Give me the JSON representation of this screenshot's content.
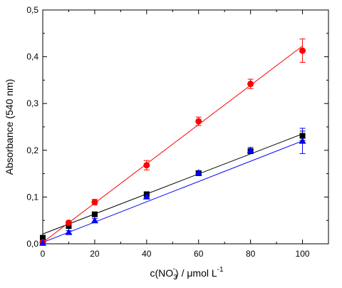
{
  "chart_data": {
    "type": "scatter",
    "xlabel_parts": {
      "before": "c(NO",
      "sub": "3",
      "sup": "-",
      "after": ") / μmol L",
      "unit_sup": "-1"
    },
    "ylabel": "Absorbance (540 nm)",
    "xlim": [
      0,
      110
    ],
    "ylim": [
      0,
      0.5
    ],
    "x_ticks": [
      0,
      20,
      40,
      60,
      80,
      100
    ],
    "x_tick_labels": [
      "0",
      "20",
      "40",
      "60",
      "80",
      "100"
    ],
    "y_ticks": [
      0,
      0.1,
      0.2,
      0.3,
      0.4,
      0.5
    ],
    "y_tick_labels": [
      "0,0",
      "0,1",
      "0,2",
      "0,3",
      "0,4",
      "0,5"
    ],
    "grid": false,
    "series": [
      {
        "marker": "square",
        "color": "#000000",
        "x": [
          0,
          10,
          20,
          40,
          60,
          80,
          100
        ],
        "y": [
          0.013,
          0.038,
          0.063,
          0.106,
          0.151,
          0.198,
          0.231
        ],
        "err": [
          0.0,
          0.004,
          0.004,
          0.004,
          0.004,
          0.004,
          0.01
        ],
        "fit": {
          "x": [
            0,
            100
          ],
          "y": [
            0.021,
            0.235
          ]
        }
      },
      {
        "marker": "circle",
        "color": "#ff0000",
        "x": [
          0,
          10,
          20,
          40,
          60,
          80,
          100
        ],
        "y": [
          0.003,
          0.045,
          0.089,
          0.168,
          0.262,
          0.342,
          0.413
        ],
        "err": [
          0.0,
          0.004,
          0.006,
          0.01,
          0.009,
          0.01,
          0.025
        ],
        "fit": {
          "x": [
            0,
            100
          ],
          "y": [
            0.003,
            0.423
          ]
        }
      },
      {
        "marker": "triangle",
        "color": "#0000ff",
        "x": [
          0,
          10,
          20,
          40,
          60,
          80,
          100
        ],
        "y": [
          0.002,
          0.025,
          0.05,
          0.101,
          0.152,
          0.2,
          0.22
        ],
        "err": [
          0.0,
          0.003,
          0.004,
          0.004,
          0.004,
          0.006,
          0.027
        ],
        "fit": {
          "x": [
            0,
            100
          ],
          "y": [
            0.003,
            0.22
          ]
        }
      }
    ]
  }
}
